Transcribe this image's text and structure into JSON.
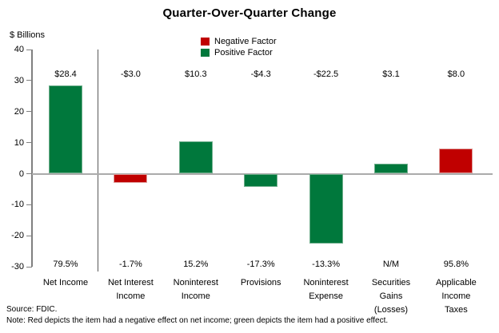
{
  "title": "Quarter-Over-Quarter Change",
  "axis_units_label": "$ Billions",
  "legend": {
    "items": [
      {
        "label": "Negative Factor",
        "color": "#C00000"
      },
      {
        "label": "Positive Factor",
        "color": "#00783C"
      }
    ]
  },
  "footer": {
    "source": "Source: FDIC.",
    "note": "Note: Red depicts the item had a negative effect on net income; green depicts the item had a positive effect."
  },
  "colors": {
    "positive_factor": "#00783C",
    "negative_factor": "#C00000",
    "zero_line": "#ABABAB",
    "axis_line": "#808080",
    "separator_line": "#595959"
  },
  "chart_data": {
    "type": "bar",
    "title": "Quarter-Over-Quarter Change",
    "ylabel": "$ Billions",
    "xlabel": "",
    "ylim": [
      -30,
      40
    ],
    "yticks": [
      40,
      30,
      20,
      10,
      0,
      -10,
      -20,
      -30
    ],
    "grid": false,
    "legend_position": "top-center",
    "categories": [
      "Net Income",
      "Net Interest Income",
      "Noninterest Income",
      "Provisions",
      "Noninterest Expense",
      "Securities Gains (Losses)",
      "Applicable Income Taxes"
    ],
    "category_label_lines": [
      "Net Income",
      "Net Interest\nIncome",
      "Noninterest\nIncome",
      "Provisions",
      "Noninterest\nExpense",
      "Securities\nGains\n(Losses)",
      "Applicable\nIncome\nTaxes"
    ],
    "values": [
      28.4,
      -3.0,
      10.3,
      -4.3,
      -22.5,
      3.1,
      8.0
    ],
    "value_labels": [
      "$28.4",
      "-$3.0",
      "$10.3",
      "-$4.3",
      "-$22.5",
      "$3.1",
      "$8.0"
    ],
    "pct_labels": [
      "79.5%",
      "-1.7%",
      "15.2%",
      "-17.3%",
      "-13.3%",
      "N/M",
      "95.8%"
    ],
    "factors": [
      "positive",
      "negative",
      "positive",
      "positive",
      "positive",
      "positive",
      "negative"
    ]
  }
}
